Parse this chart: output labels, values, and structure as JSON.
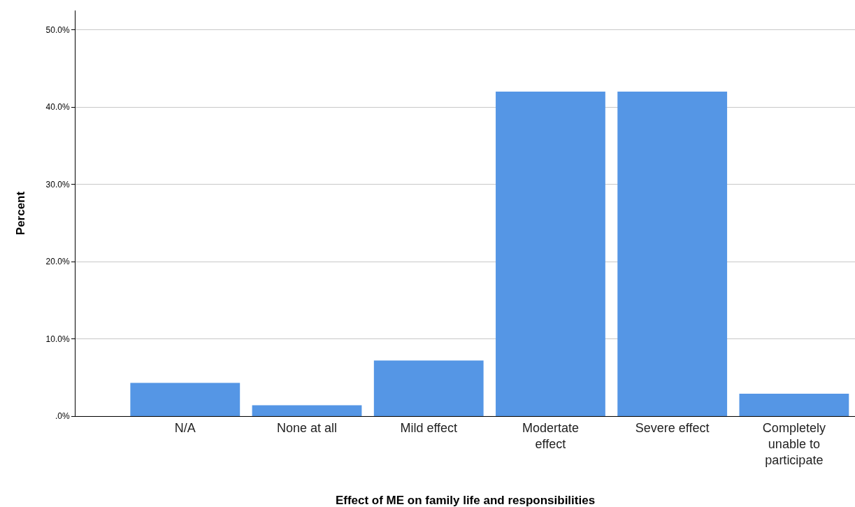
{
  "chart_data": {
    "type": "bar",
    "xlabel": "Effect of ME on family life and responsibilities",
    "ylabel": "Percent",
    "categories": [
      "N/A",
      "None at all",
      "Mild effect",
      "Modertate\neffect",
      "Severe effect",
      "Completely\nunable to\nparticipate"
    ],
    "values": [
      4.3,
      1.4,
      7.2,
      42.0,
      42.0,
      2.9
    ],
    "color": "#5596e5",
    "ylim": [
      0,
      52.5
    ],
    "yticks": [
      {
        "value": 0,
        "label": ".0%"
      },
      {
        "value": 10,
        "label": "10.0%"
      },
      {
        "value": 20,
        "label": "20.0%"
      },
      {
        "value": 30,
        "label": "30.0%"
      },
      {
        "value": 40,
        "label": "40.0%"
      },
      {
        "value": 50,
        "label": "50.0%"
      }
    ],
    "grid": "y"
  }
}
